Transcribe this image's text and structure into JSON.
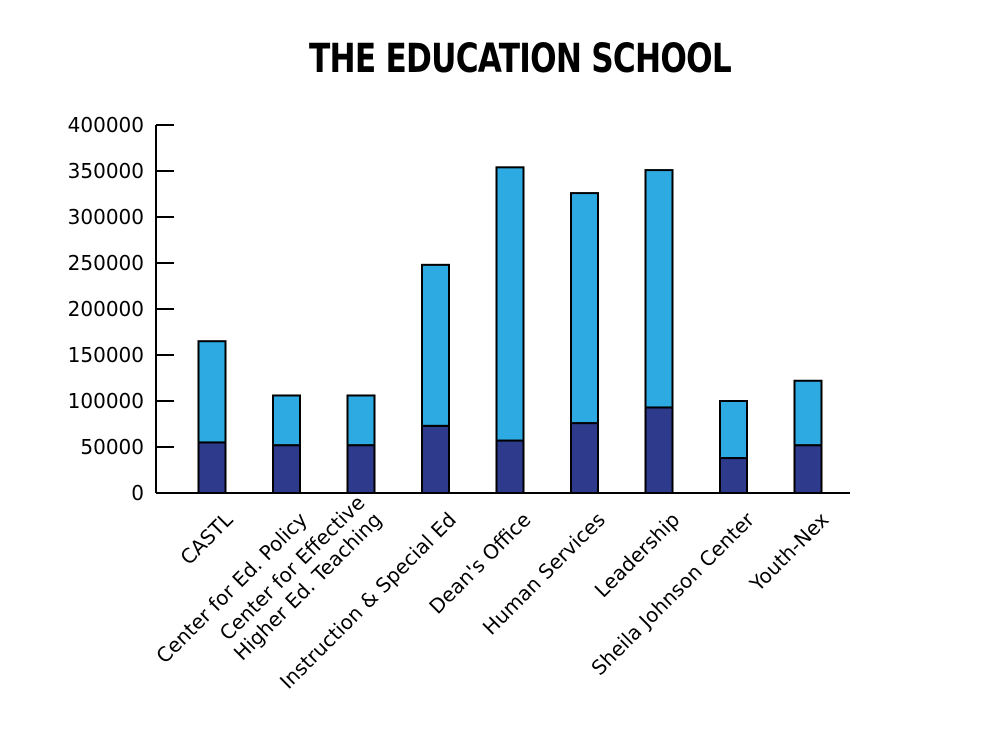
{
  "chart_data": {
    "type": "bar",
    "stacked": true,
    "title": "THE EDUCATION SCHOOL",
    "xlabel": "",
    "ylabel": "",
    "ylim": [
      0,
      400000
    ],
    "yticks": [
      0,
      50000,
      100000,
      150000,
      200000,
      250000,
      300000,
      350000,
      400000
    ],
    "ytick_labels": [
      "0",
      "50000",
      "100000",
      "150000",
      "200000",
      "250000",
      "300000",
      "350000",
      "400000"
    ],
    "grid": false,
    "categories": [
      [
        "CASTL"
      ],
      [
        "Center for Ed. Policy"
      ],
      [
        "Center for Effective",
        "Higher Ed. Teaching"
      ],
      [
        "Instruction & Special Ed"
      ],
      [
        "Dean's Office"
      ],
      [
        "Human Services"
      ],
      [
        "Leadership"
      ],
      [
        "Sheila Johnson Center"
      ],
      [
        "Youth-Nex"
      ]
    ],
    "series": [
      {
        "values": [
          55000,
          52000,
          52000,
          73000,
          57000,
          76000,
          93000,
          38000,
          52000
        ],
        "color": "#2e3a8c"
      },
      {
        "values": [
          110000,
          54000,
          54000,
          175000,
          297000,
          250000,
          258000,
          62000,
          70000
        ],
        "color": "#2eaae2"
      }
    ]
  }
}
